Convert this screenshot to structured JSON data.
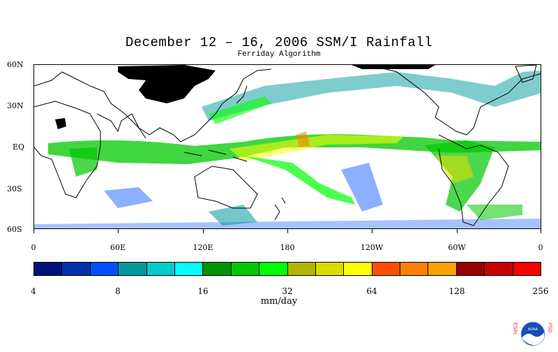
{
  "title": "December 12 – 16, 2006 SSM/I Rainfall",
  "subtitle": "Ferriday Algorithm",
  "map": {
    "lat_labels": [
      "60N",
      "30N",
      "EQ",
      "30S",
      "60S"
    ],
    "lon_labels": [
      "0",
      "60E",
      "120E",
      "180",
      "120W",
      "60W",
      "0"
    ]
  },
  "colorbar": {
    "colors": [
      "#00127a",
      "#0033b0",
      "#0050ff",
      "#00999c",
      "#00cccc",
      "#00ffff",
      "#009400",
      "#00c800",
      "#00ff00",
      "#b3b300",
      "#dcdc00",
      "#ffff00",
      "#ff5000",
      "#ff7f00",
      "#ffa000",
      "#960000",
      "#c80000",
      "#ff0000"
    ],
    "labels": [
      "4",
      "8",
      "16",
      "32",
      "64",
      "128",
      "256"
    ],
    "unit": "mm/day"
  },
  "logo": {
    "left_text": "ESRL",
    "right_text": "PSD",
    "center_text": "NOAA"
  }
}
